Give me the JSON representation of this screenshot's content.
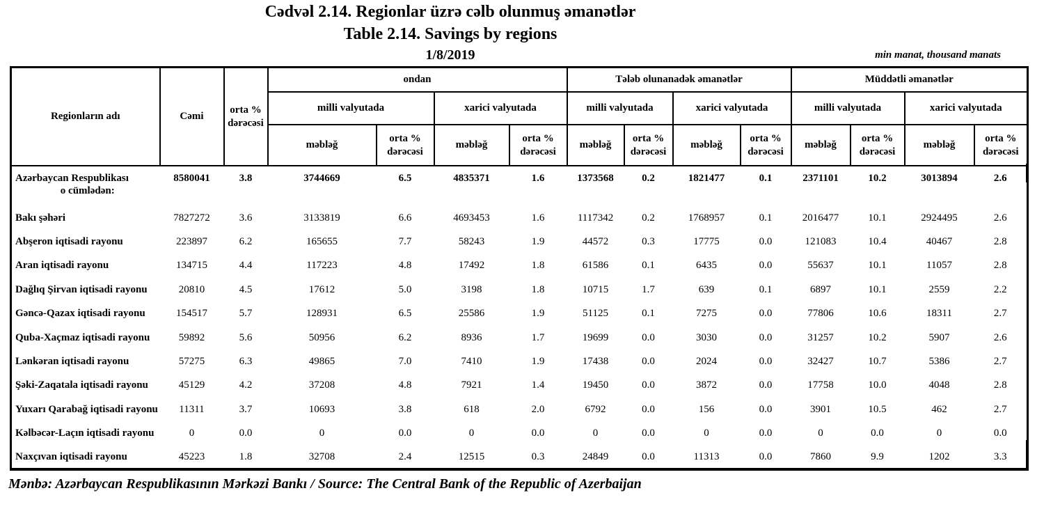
{
  "title_az": "Cədvəl 2.14. Regionlar üzrə cəlb olunmuş əmanətlər",
  "title_en": "Table 2.14. Savings by regions",
  "date": "1/8/2019",
  "unit_note": "min manat, thousand manats",
  "source_note": "Mənbə: Azərbaycan Respublikasının Mərkəzi Bankı / Source: The Central Bank of the Republic of Azerbaijan",
  "table": {
    "headers": {
      "region": "Regionların adı",
      "total": "Cəmi",
      "rate": "orta % dərəcəsi",
      "group_ondan": "ondan",
      "group_demand": "Tələb olunanadək əmanətlər",
      "group_time": "Müddətli əmanətlər",
      "cur_national": "milli valyutada",
      "cur_foreign": "xarici valyutada",
      "amount": "məbləğ",
      "pct": "orta % dərəcəsi"
    },
    "rows": [
      {
        "name": "Azərbaycan Respublikası",
        "name2": "o cümlədən:",
        "bold": true,
        "values": [
          "8580041",
          "3.8",
          "3744669",
          "6.5",
          "4835371",
          "1.6",
          "1373568",
          "0.2",
          "1821477",
          "0.1",
          "2371101",
          "10.2",
          "3013894",
          "2.6"
        ]
      },
      {
        "name": "Bakı şəhəri",
        "values": [
          "7827272",
          "3.6",
          "3133819",
          "6.6",
          "4693453",
          "1.6",
          "1117342",
          "0.2",
          "1768957",
          "0.1",
          "2016477",
          "10.1",
          "2924495",
          "2.6"
        ]
      },
      {
        "name": "Abşeron iqtisadi rayonu",
        "values": [
          "223897",
          "6.2",
          "165655",
          "7.7",
          "58243",
          "1.9",
          "44572",
          "0.3",
          "17775",
          "0.0",
          "121083",
          "10.4",
          "40467",
          "2.8"
        ]
      },
      {
        "name": "Aran iqtisadi rayonu",
        "values": [
          "134715",
          "4.4",
          "117223",
          "4.8",
          "17492",
          "1.8",
          "61586",
          "0.1",
          "6435",
          "0.0",
          "55637",
          "10.1",
          "11057",
          "2.8"
        ]
      },
      {
        "name": "Dağlıq Şirvan iqtisadi rayonu",
        "values": [
          "20810",
          "4.5",
          "17612",
          "5.0",
          "3198",
          "1.8",
          "10715",
          "1.7",
          "639",
          "0.1",
          "6897",
          "10.1",
          "2559",
          "2.2"
        ]
      },
      {
        "name": "Gəncə-Qazax iqtisadi rayonu",
        "values": [
          "154517",
          "5.7",
          "128931",
          "6.5",
          "25586",
          "1.9",
          "51125",
          "0.1",
          "7275",
          "0.0",
          "77806",
          "10.6",
          "18311",
          "2.7"
        ]
      },
      {
        "name": "Quba-Xaçmaz iqtisadi rayonu",
        "values": [
          "59892",
          "5.6",
          "50956",
          "6.2",
          "8936",
          "1.7",
          "19699",
          "0.0",
          "3030",
          "0.0",
          "31257",
          "10.2",
          "5907",
          "2.6"
        ]
      },
      {
        "name": "Lənkəran iqtisadi rayonu",
        "values": [
          "57275",
          "6.3",
          "49865",
          "7.0",
          "7410",
          "1.9",
          "17438",
          "0.0",
          "2024",
          "0.0",
          "32427",
          "10.7",
          "5386",
          "2.7"
        ]
      },
      {
        "name": "Şəki-Zaqatala iqtisadi rayonu",
        "values": [
          "45129",
          "4.2",
          "37208",
          "4.8",
          "7921",
          "1.4",
          "19450",
          "0.0",
          "3872",
          "0.0",
          "17758",
          "10.0",
          "4048",
          "2.8"
        ]
      },
      {
        "name": "Yuxarı Qarabağ iqtisadi rayonu",
        "values": [
          "11311",
          "3.7",
          "10693",
          "3.8",
          "618",
          "2.0",
          "6792",
          "0.0",
          "156",
          "0.0",
          "3901",
          "10.5",
          "462",
          "2.7"
        ]
      },
      {
        "name": "Kəlbəcər-Laçın iqtisadi rayonu",
        "values": [
          "0",
          "0.0",
          "0",
          "0.0",
          "0",
          "0.0",
          "0",
          "0.0",
          "0",
          "0.0",
          "0",
          "0.0",
          "0",
          "0.0"
        ]
      },
      {
        "name": "Naxçıvan iqtisadi rayonu",
        "values": [
          "45223",
          "1.8",
          "32708",
          "2.4",
          "12515",
          "0.3",
          "24849",
          "0.0",
          "11313",
          "0.0",
          "7860",
          "9.9",
          "1202",
          "3.3"
        ]
      }
    ]
  }
}
